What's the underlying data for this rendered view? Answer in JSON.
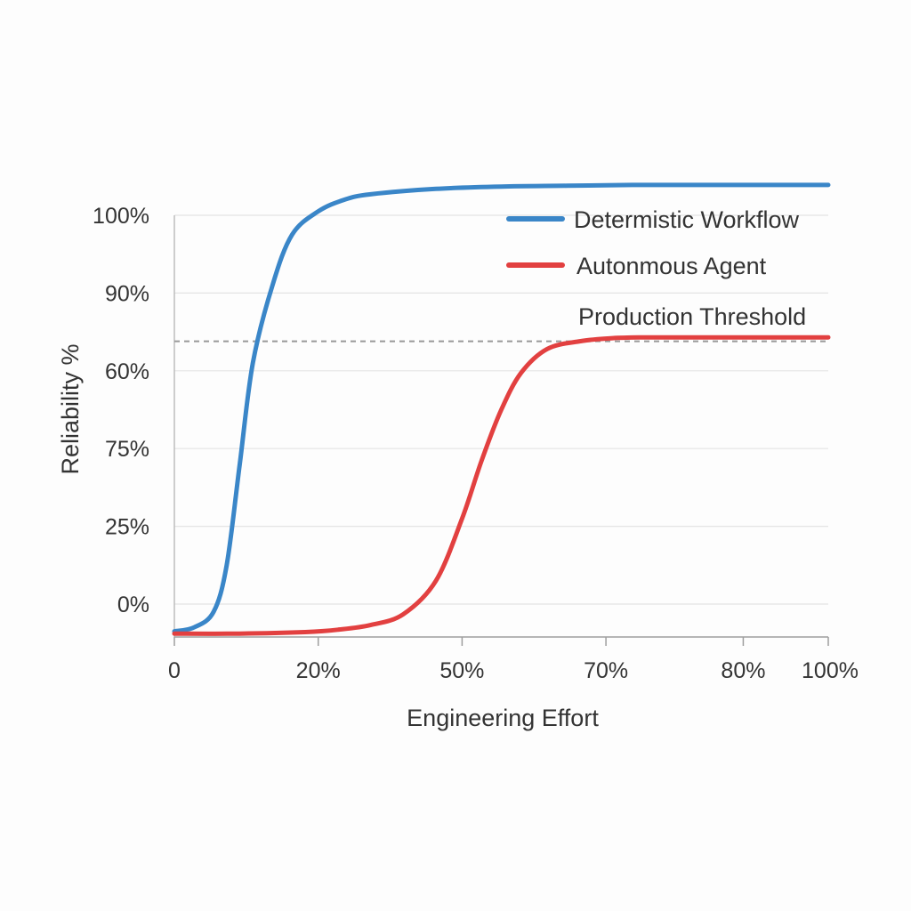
{
  "chart_data": {
    "type": "line",
    "title": "",
    "xlabel": "Engineering Effort",
    "ylabel": "Reliability %",
    "x_ticks": [
      {
        "label": "0",
        "x": 0
      },
      {
        "label": "20%",
        "x": 22
      },
      {
        "label": "50%",
        "x": 44
      },
      {
        "label": "70%",
        "x": 66
      },
      {
        "label": "80%",
        "x": 87
      },
      {
        "label": "100%",
        "x": 100
      }
    ],
    "y_ticks": [
      {
        "label": "100%",
        "level": 5
      },
      {
        "label": "90%",
        "level": 4
      },
      {
        "label": "60%",
        "level": 3
      },
      {
        "label": "75%",
        "level": 2
      },
      {
        "label": "25%",
        "level": 1
      },
      {
        "label": "0%",
        "level": 0
      }
    ],
    "xlim": [
      0,
      100
    ],
    "ylim": [
      -0.4,
      5.4
    ],
    "grid": true,
    "legend_position": "top-right",
    "series": [
      {
        "name": "Determistic Workflow",
        "color": "#3a86c8",
        "x": [
          0,
          3,
          6,
          8,
          10,
          12,
          15,
          18,
          22,
          26,
          30,
          40,
          50,
          60,
          70,
          80,
          90,
          100
        ],
        "values": [
          -0.35,
          -0.3,
          -0.1,
          0.5,
          1.8,
          3.1,
          4.1,
          4.75,
          5.05,
          5.2,
          5.27,
          5.34,
          5.37,
          5.38,
          5.39,
          5.39,
          5.39,
          5.39
        ]
      },
      {
        "name": "Autonmous Agent",
        "color": "#e24040",
        "x": [
          0,
          10,
          20,
          25,
          30,
          35,
          40,
          44,
          47,
          50,
          53,
          57,
          62,
          67,
          72,
          80,
          90,
          100
        ],
        "values": [
          -0.38,
          -0.38,
          -0.36,
          -0.33,
          -0.27,
          -0.13,
          0.3,
          1.1,
          1.85,
          2.5,
          2.97,
          3.28,
          3.38,
          3.42,
          3.43,
          3.43,
          3.43,
          3.43
        ]
      }
    ],
    "threshold": {
      "name": "Production Threshold",
      "value": 3.38,
      "color": "#999999"
    }
  }
}
